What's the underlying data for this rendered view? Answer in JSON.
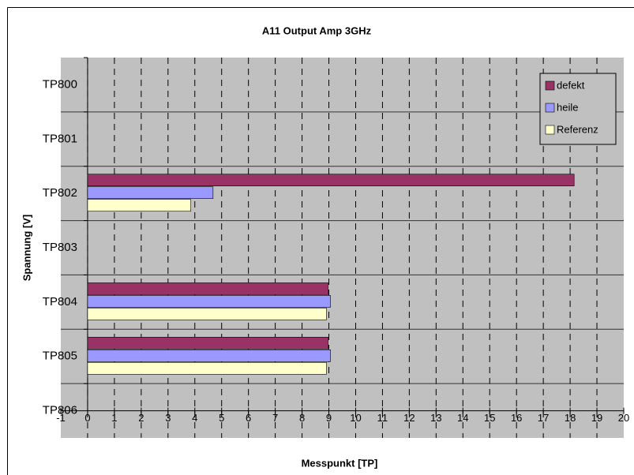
{
  "chart_data": {
    "type": "hbar",
    "title": "A11 Output Amp 3GHz",
    "xlabel": "Messpunkt [TP]",
    "ylabel": "Spannung [V]",
    "categories": [
      "TP800",
      "TP801",
      "TP802",
      "TP803",
      "TP804",
      "TP805",
      "TP806"
    ],
    "series": [
      {
        "name": "defekt",
        "color": "#993366",
        "values": [
          null,
          null,
          18.15,
          null,
          8.97,
          8.97,
          null
        ]
      },
      {
        "name": "heile",
        "color": "#9999ff",
        "values": [
          null,
          null,
          4.68,
          null,
          9.06,
          9.06,
          null
        ]
      },
      {
        "name": "Referenz",
        "color": "#ffffcc",
        "values": [
          null,
          null,
          3.85,
          null,
          8.91,
          8.91,
          null
        ]
      }
    ],
    "xlim": [
      -1,
      20
    ],
    "xticks": [
      -1,
      0,
      1,
      2,
      3,
      4,
      5,
      6,
      7,
      8,
      9,
      10,
      11,
      12,
      13,
      14,
      15,
      16,
      17,
      18,
      19,
      20
    ],
    "grid": true,
    "legend": "upper right"
  }
}
